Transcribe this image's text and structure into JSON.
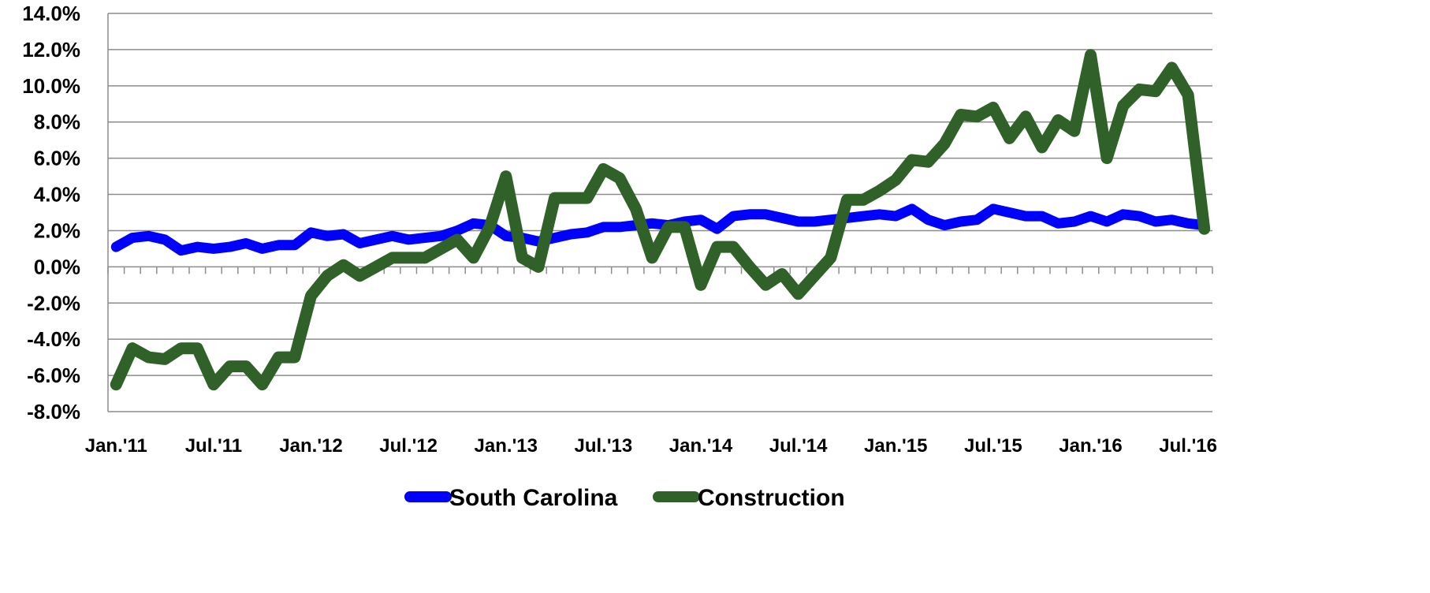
{
  "chart_data": {
    "type": "line",
    "categories": [
      "Jan.'11",
      null,
      null,
      null,
      null,
      null,
      "Jul.'11",
      null,
      null,
      null,
      null,
      null,
      "Jan.'12",
      null,
      null,
      null,
      null,
      null,
      "Jul.'12",
      null,
      null,
      null,
      null,
      null,
      "Jan.'13",
      null,
      null,
      null,
      null,
      null,
      "Jul.'13",
      null,
      null,
      null,
      null,
      null,
      "Jan.'14",
      null,
      null,
      null,
      null,
      null,
      "Jul.'14",
      null,
      null,
      null,
      null,
      null,
      "Jan.'15",
      null,
      null,
      null,
      null,
      null,
      "Jul.'15",
      null,
      null,
      null,
      null,
      null,
      "Jan.'16",
      null,
      null,
      null,
      null,
      null,
      "Jul.'16",
      null
    ],
    "series": [
      {
        "name": "South Carolina",
        "color": "#0000ff",
        "values": [
          1.1,
          1.6,
          1.7,
          1.5,
          0.9,
          1.1,
          1.0,
          1.1,
          1.3,
          1.0,
          1.2,
          1.2,
          1.9,
          1.7,
          1.8,
          1.3,
          1.5,
          1.7,
          1.5,
          1.6,
          1.7,
          2.0,
          2.4,
          2.3,
          1.7,
          1.6,
          1.4,
          1.6,
          1.8,
          1.9,
          2.2,
          2.2,
          2.3,
          2.4,
          2.3,
          2.5,
          2.6,
          2.1,
          2.8,
          2.9,
          2.9,
          2.7,
          2.5,
          2.5,
          2.6,
          2.7,
          2.8,
          2.9,
          2.8,
          3.2,
          2.6,
          2.3,
          2.5,
          2.6,
          3.2,
          3.0,
          2.8,
          2.8,
          2.4,
          2.5,
          2.8,
          2.5,
          2.9,
          2.8,
          2.5,
          2.6,
          2.4,
          2.3
        ]
      },
      {
        "name": "Construction",
        "color": "#2f6128",
        "values": [
          -6.5,
          -4.5,
          -5.0,
          -5.1,
          -4.5,
          -4.5,
          -6.5,
          -5.5,
          -5.5,
          -6.5,
          -5.0,
          -5.0,
          -1.6,
          -0.5,
          0.1,
          -0.5,
          0.0,
          0.5,
          0.5,
          0.5,
          1.0,
          1.5,
          0.5,
          2.2,
          5.0,
          0.5,
          0.0,
          3.8,
          3.8,
          3.8,
          5.4,
          4.9,
          3.2,
          0.5,
          2.2,
          2.2,
          -1.0,
          1.1,
          1.1,
          0.0,
          -1.0,
          -0.4,
          -1.5,
          -0.5,
          0.5,
          3.7,
          3.7,
          4.2,
          4.8,
          5.9,
          5.8,
          6.8,
          8.4,
          8.3,
          8.8,
          7.1,
          8.3,
          6.6,
          8.1,
          7.5,
          11.7,
          6.0,
          8.9,
          9.8,
          9.7,
          11.0,
          9.5,
          2.1
        ]
      }
    ],
    "ylim": [
      -8,
      14
    ],
    "yticks": [
      {
        "value": -8,
        "label": "-8.0%"
      },
      {
        "value": -6,
        "label": "-6.0%"
      },
      {
        "value": -4,
        "label": "-4.0%"
      },
      {
        "value": -2,
        "label": "-2.0%"
      },
      {
        "value": 0,
        "label": "0.0%"
      },
      {
        "value": 2,
        "label": "2.0%"
      },
      {
        "value": 4,
        "label": "4.0%"
      },
      {
        "value": 6,
        "label": "6.0%"
      },
      {
        "value": 8,
        "label": "8.0%"
      },
      {
        "value": 10,
        "label": "10.0%"
      },
      {
        "value": 12,
        "label": "12.0%"
      },
      {
        "value": 14,
        "label": "14.0%"
      }
    ],
    "grid": true,
    "legend": "bottom"
  }
}
